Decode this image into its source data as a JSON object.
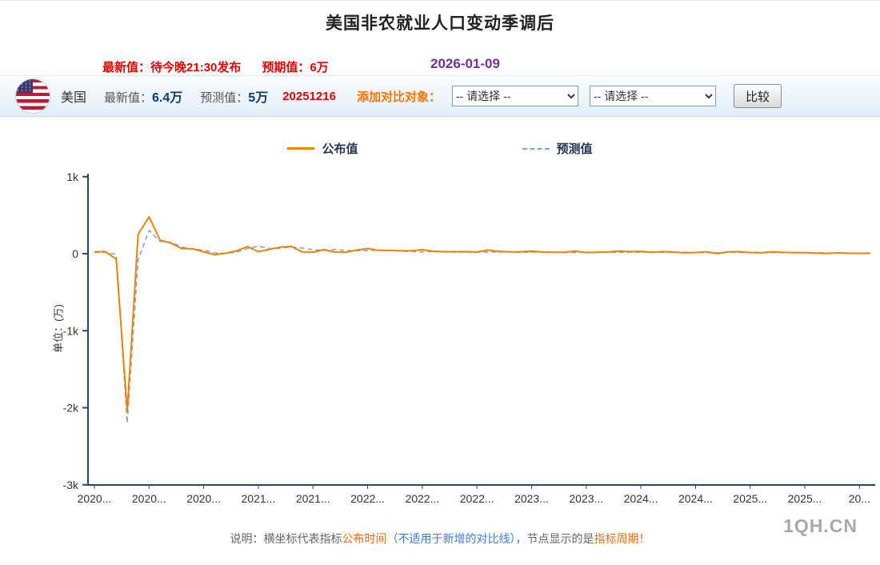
{
  "page": {
    "title": "美国非农就业人口变动季调后"
  },
  "pre_header": {
    "latest_label": "最新值：",
    "latest_value": "待今晚21:30发布",
    "expect_label": "预期值：",
    "expect_value": "6万",
    "date": "2026-01-09"
  },
  "header": {
    "country": "美国",
    "latest_label": "最新值：",
    "latest_value": "6.4万",
    "forecast_label": "预测值：",
    "forecast_value": "5万",
    "release_code": "20251216",
    "compare_label": "添加对比对象：",
    "select1_value": "-- 请选择 --",
    "select2_value": "-- 请选择 --",
    "compare_button": "比较"
  },
  "legend": {
    "published": "公布值",
    "forecast": "预测值"
  },
  "chart_data": {
    "type": "line",
    "title": "美国非农就业人口变动季调后",
    "ylabel": "单位：(万)",
    "ylim": [
      -3000,
      1000
    ],
    "grid": false,
    "legend_position": "top-center",
    "yticks": [
      {
        "value": 1000,
        "label": "1k"
      },
      {
        "value": 0,
        "label": "0"
      },
      {
        "value": -1000,
        "label": "-1k"
      },
      {
        "value": -2000,
        "label": "-2k"
      },
      {
        "value": -3000,
        "label": "-3k"
      }
    ],
    "x_labels": [
      "2020...",
      "2020...",
      "2020...",
      "2021...",
      "2021...",
      "2022...",
      "2022...",
      "2022...",
      "2023...",
      "2023...",
      "2024...",
      "2024...",
      "2025...",
      "2025...",
      "20..."
    ],
    "x_tick_indices": [
      0,
      5,
      10,
      15,
      20,
      25,
      30,
      35,
      40,
      45,
      50,
      55,
      60,
      65,
      70
    ],
    "colors": {
      "published": "#f08200",
      "forecast": "#7aa7d9"
    },
    "months": [
      "2020-01",
      "2020-02",
      "2020-03",
      "2020-04",
      "2020-05",
      "2020-06",
      "2020-07",
      "2020-08",
      "2020-09",
      "2020-10",
      "2020-11",
      "2020-12",
      "2021-01",
      "2021-02",
      "2021-03",
      "2021-04",
      "2021-05",
      "2021-06",
      "2021-07",
      "2021-08",
      "2021-09",
      "2021-10",
      "2021-11",
      "2021-12",
      "2022-01",
      "2022-02",
      "2022-03",
      "2022-04",
      "2022-05",
      "2022-06",
      "2022-07",
      "2022-08",
      "2022-09",
      "2022-10",
      "2022-11",
      "2022-12",
      "2023-01",
      "2023-02",
      "2023-03",
      "2023-04",
      "2023-05",
      "2023-06",
      "2023-07",
      "2023-08",
      "2023-09",
      "2023-10",
      "2023-11",
      "2023-12",
      "2024-01",
      "2024-02",
      "2024-03",
      "2024-04",
      "2024-05",
      "2024-06",
      "2024-07",
      "2024-08",
      "2024-09",
      "2024-10",
      "2024-11",
      "2024-12",
      "2025-01",
      "2025-02",
      "2025-03",
      "2025-04",
      "2025-05",
      "2025-06",
      "2025-07",
      "2025-08",
      "2025-09",
      "2025-10",
      "2025-11",
      "2025-12"
    ],
    "series": [
      {
        "name": "公布值",
        "style": "solid",
        "values": [
          22.5,
          27.3,
          -70.1,
          -2050,
          250.9,
          480,
          176.3,
          137.1,
          66.1,
          63.8,
          24.5,
          -14,
          4.9,
          37.9,
          91.6,
          26.6,
          55.9,
          85,
          94.3,
          23.5,
          19.4,
          53.1,
          21,
          19.9,
          46.7,
          67.8,
          43.1,
          42.8,
          39,
          37.2,
          52.8,
          31.5,
          26.3,
          26.1,
          26.3,
          22.3,
          47.2,
          31.1,
          23.6,
          25.3,
          33.9,
          20.9,
          18.7,
          18.7,
          33.6,
          15,
          19.9,
          21.6,
          35.3,
          27.5,
          30.3,
          17.5,
          27.2,
          20.6,
          11.4,
          14.2,
          25.4,
          1.2,
          22.7,
          25.6,
          14.3,
          11.7,
          22.8,
          17.7,
          13.9,
          14.7,
          7.3,
          2.2,
          11.9,
          6.0,
          5.2,
          6.4
        ]
      },
      {
        "name": "预测值",
        "style": "dashed",
        "values": [
          16,
          17.5,
          -10,
          -2200,
          -80,
          300,
          160,
          150,
          85,
          60,
          47,
          10,
          5,
          18,
          66,
          97.8,
          65,
          70,
          87,
          75,
          50,
          45,
          55,
          40,
          40,
          40,
          49,
          39.1,
          32.5,
          26.8,
          25,
          30,
          30,
          20,
          20,
          20,
          22.3,
          20.5,
          24,
          18,
          19.5,
          22.5,
          20,
          17,
          17,
          18,
          18,
          17.5,
          18,
          20,
          20,
          24.3,
          18,
          19,
          17.5,
          16,
          14,
          11.3,
          20,
          16,
          16.4,
          17,
          14,
          13.5,
          13,
          12.6,
          11,
          10.6,
          7.5,
          5,
          5,
          5
        ]
      }
    ]
  },
  "footer": {
    "note_parts": {
      "p1": "说明：横坐标代表指标",
      "p2": "公布时间",
      "p3": "（不适用于新增的对比线）",
      "p4": "，节点显示的是",
      "p5": "指标周期！"
    },
    "watermark": "1QH.CN"
  }
}
